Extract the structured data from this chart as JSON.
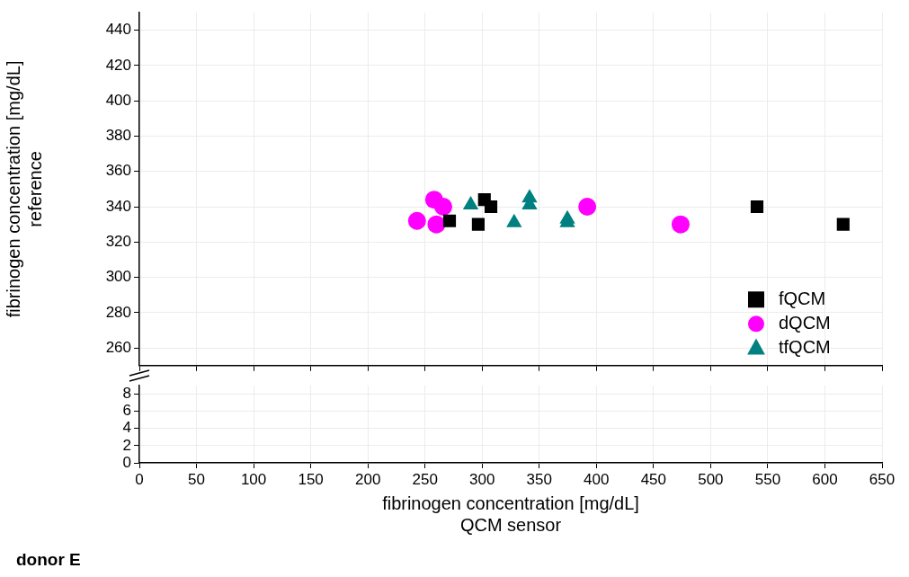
{
  "chart_data": [
    {
      "type": "scatter",
      "ylabel": "fibrinogen concentration [mg/dL]\nreference",
      "xlim": [
        0,
        650
      ],
      "xticks": [
        0,
        50,
        100,
        150,
        200,
        250,
        300,
        350,
        400,
        450,
        500,
        550,
        600,
        650
      ],
      "ylim": [
        250,
        450
      ],
      "yticks": [
        260,
        280,
        300,
        320,
        340,
        360,
        380,
        400,
        420,
        440
      ],
      "tick_labels": "y",
      "grid": true,
      "legend": "bottom right",
      "series": [
        {
          "name": "fQCM",
          "color": "#000000",
          "marker": "square",
          "x": [
            271.5,
            296.6,
            302,
            307.7,
            540.6,
            616
          ],
          "values": [
            332,
            330,
            344,
            340,
            340,
            330
          ]
        },
        {
          "name": "dQCM",
          "color": "#ff00ff",
          "marker": "circle",
          "x": [
            243,
            260,
            258,
            266,
            392,
            473.7
          ],
          "values": [
            332,
            330,
            344,
            340,
            340,
            330
          ]
        },
        {
          "name": "tfQCM",
          "color": "#008080",
          "marker": "triangle",
          "x": [
            290,
            328,
            341.5,
            341.5,
            374.6,
            374.6
          ],
          "values": [
            341,
            331,
            345,
            341,
            333,
            331
          ]
        }
      ]
    },
    {
      "type": "scatter",
      "xlabel": "fibrinogen concentration [mg/dL]\nQCM sensor",
      "xlim": [
        0,
        650
      ],
      "xticks": [
        0,
        50,
        100,
        150,
        200,
        250,
        300,
        350,
        400,
        450,
        500,
        550,
        600,
        650
      ],
      "ylim": [
        0,
        9
      ],
      "yticks": [
        0,
        2,
        4,
        6,
        8
      ],
      "grid": true,
      "annotations": [
        "donor E"
      ]
    }
  ]
}
